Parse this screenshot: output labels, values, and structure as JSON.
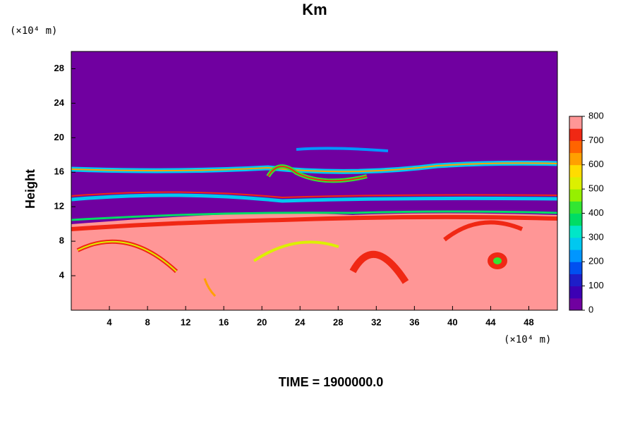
{
  "chart_data": {
    "type": "contour",
    "title": "Km",
    "y_label": "Height",
    "y_unit": "(×10⁴ m)",
    "x_unit": "(×10⁴ m)",
    "footer": "TIME = 1900000.0",
    "xlim": [
      0,
      51
    ],
    "ylim": [
      0,
      30
    ],
    "xticks": [
      4,
      8,
      12,
      16,
      20,
      24,
      28,
      32,
      36,
      40,
      44,
      48
    ],
    "yticks": [
      4,
      8,
      12,
      16,
      20,
      24,
      28
    ],
    "colorbar": {
      "lim": [
        0,
        800
      ],
      "ticks": [
        0,
        100,
        200,
        300,
        400,
        500,
        600,
        700,
        800
      ],
      "colors": [
        "#7000a0",
        "#3c00b4",
        "#1e1ec8",
        "#0050f0",
        "#0096ff",
        "#00c8f0",
        "#00e6c8",
        "#00dc64",
        "#32e632",
        "#96f000",
        "#dcf000",
        "#ffdc00",
        "#ffa000",
        "#ff6400",
        "#f02814",
        "#ff9696"
      ]
    }
  }
}
